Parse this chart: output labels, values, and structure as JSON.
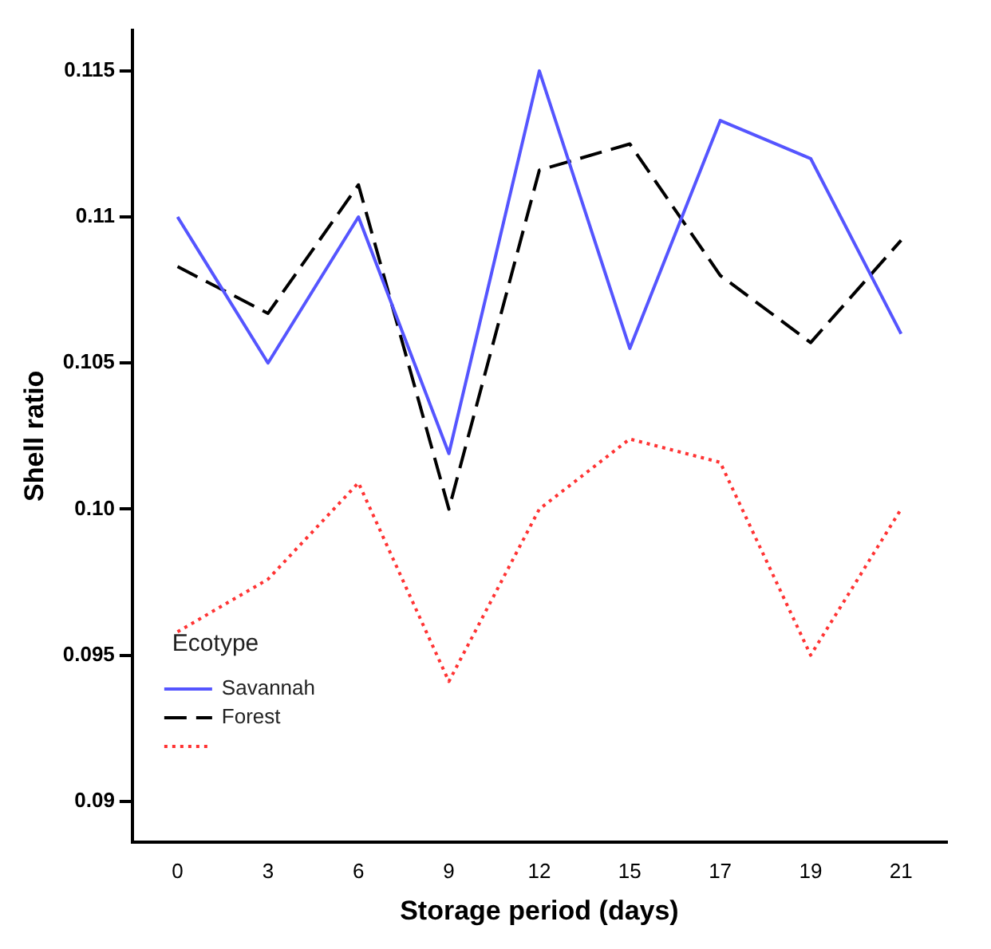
{
  "chart_data": {
    "type": "line",
    "xlabel": "Storage period (days)",
    "ylabel": "Shell ratio",
    "legend_title": "Ecotype",
    "legend": "bottom left",
    "grid": false,
    "marker": "none",
    "categories": [
      "0",
      "3",
      "6",
      "9",
      "12",
      "15",
      "17",
      "19",
      "21"
    ],
    "ylim": [
      0.0886,
      0.1164
    ],
    "yticks": [
      0.09,
      0.095,
      {
        "value": 0.1,
        "label": "0.10"
      },
      0.105,
      0.11,
      0.115
    ],
    "series": [
      {
        "name": "Savannah",
        "color": "#5555ff",
        "line_style": "solid",
        "values": [
          0.11,
          0.105,
          0.11,
          0.1019,
          0.115,
          0.1055,
          0.1133,
          0.112,
          0.106
        ]
      },
      {
        "name": "Forest",
        "color": "#000000",
        "line_style": "dashed",
        "values": [
          0.1083,
          0.1067,
          0.1111,
          0.1,
          0.1116,
          0.1125,
          0.108,
          0.1057,
          0.1092
        ]
      },
      {
        "color": "#ff3333",
        "line_style": "dotted",
        "values": [
          0.0958,
          0.0976,
          0.1009,
          0.0941,
          0.1,
          0.1024,
          0.1016,
          0.095,
          0.1
        ]
      }
    ]
  }
}
